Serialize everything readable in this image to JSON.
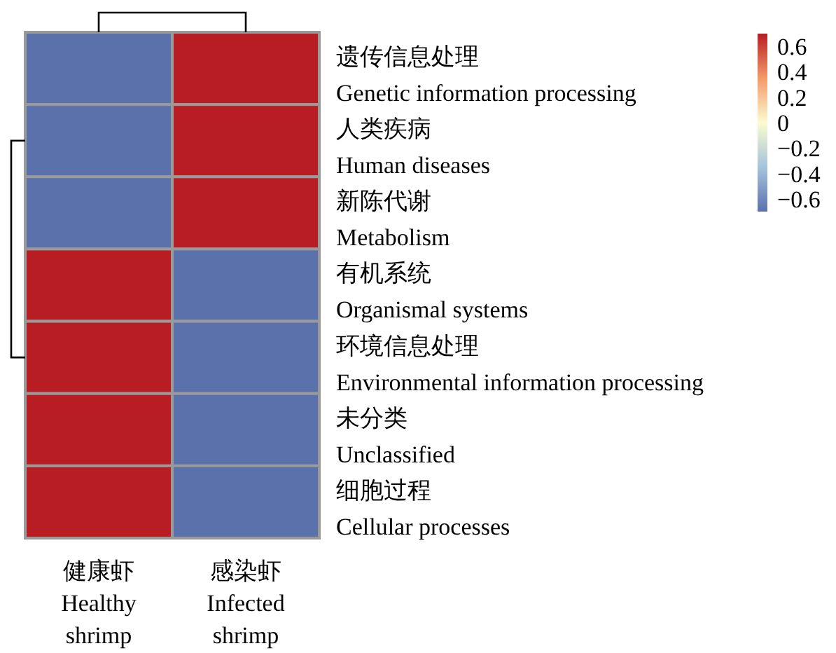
{
  "chart_data": {
    "type": "heatmap",
    "categories": [
      "健康虾\nHealthy\nshrimp",
      "感染虾\nInfected\nshrimp"
    ],
    "y_categories": [
      "遗传信息处理\nGenetic information processing",
      "人类疾病\nHuman diseases",
      "新陈代谢\nMetabolism",
      "有机系统\nOrganismal systems",
      "环境信息处理\nEnvironmental information processing",
      "未分类\nUnclassified",
      "细胞过程\nCellular processes"
    ],
    "cells": [
      [
        -0.7,
        0.7
      ],
      [
        -0.7,
        0.7
      ],
      [
        -0.7,
        0.7
      ],
      [
        0.7,
        -0.7
      ],
      [
        0.7,
        -0.7
      ],
      [
        0.7,
        -0.7
      ],
      [
        0.7,
        -0.7
      ]
    ],
    "clim": [
      -0.7,
      0.7
    ],
    "cticks": [
      0.6,
      0.4,
      0.2,
      0,
      {
        "value": -0.2,
        "label": "−0.2"
      },
      {
        "value": -0.4,
        "label": "−0.4"
      },
      {
        "value": -0.6,
        "label": "−0.6"
      }
    ]
  }
}
